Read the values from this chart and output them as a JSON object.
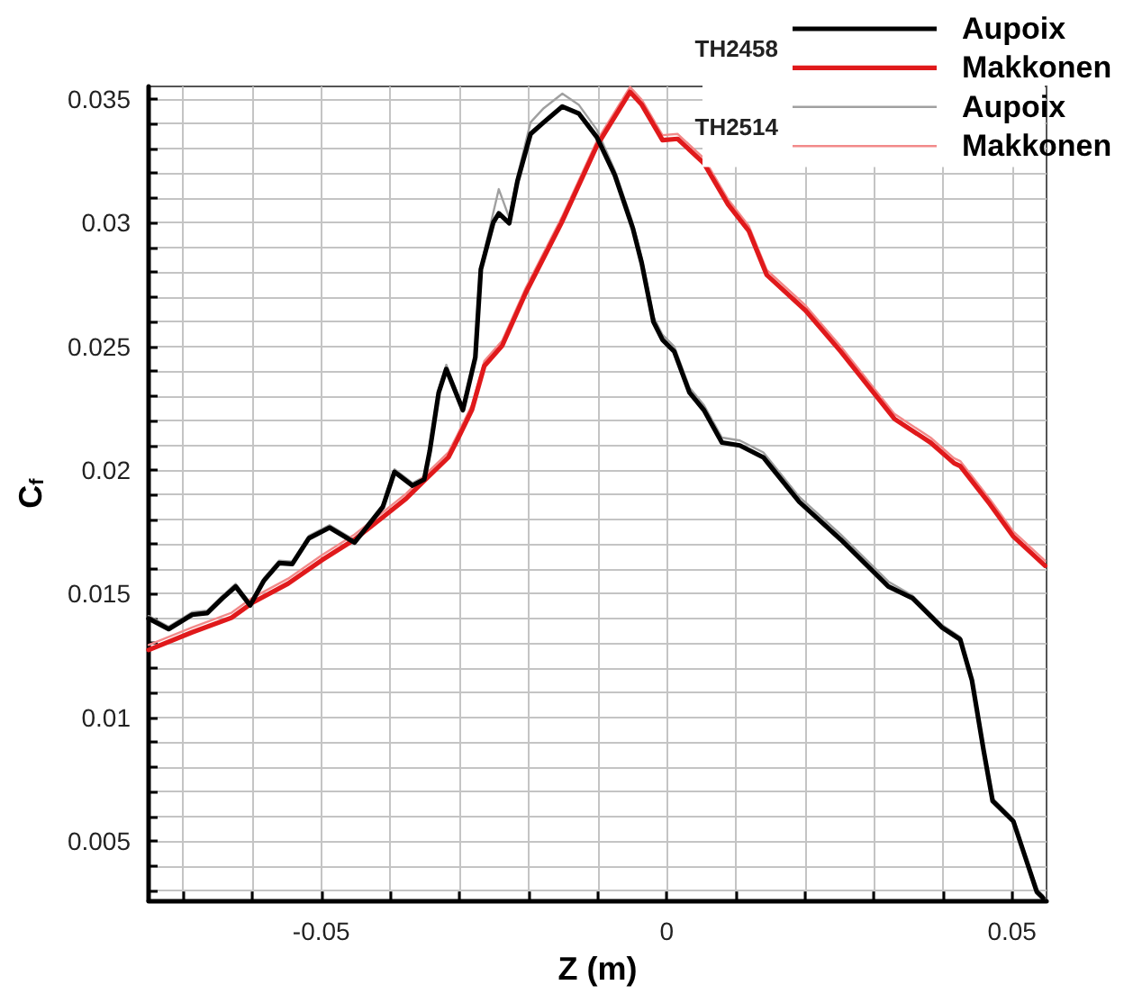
{
  "chart_data": {
    "type": "line",
    "xlabel": "Z (m)",
    "ylabel": "C$_{f}$",
    "xlim": [
      -0.075,
      0.055
    ],
    "ylim": [
      0.0026,
      0.0355
    ],
    "xticks": [
      {
        "value": -0.07,
        "label": null
      },
      {
        "value": -0.06,
        "label": null
      },
      -0.05,
      {
        "value": -0.04,
        "label": null
      },
      {
        "value": -0.03,
        "label": null
      },
      {
        "value": -0.02,
        "label": null
      },
      {
        "value": -0.01,
        "label": null
      },
      0,
      {
        "value": 0.01,
        "label": null
      },
      {
        "value": 0.02,
        "label": null
      },
      {
        "value": 0.03,
        "label": null
      },
      {
        "value": 0.04,
        "label": null
      },
      0.05
    ],
    "yticks": [
      {
        "value": 0.003,
        "label": null
      },
      {
        "value": 0.004,
        "label": null
      },
      0.005,
      {
        "value": 0.006,
        "label": null
      },
      {
        "value": 0.007,
        "label": null
      },
      {
        "value": 0.008,
        "label": null
      },
      {
        "value": 0.009,
        "label": null
      },
      0.01,
      {
        "value": 0.011,
        "label": null
      },
      {
        "value": 0.012,
        "label": null
      },
      {
        "value": 0.013,
        "label": null
      },
      {
        "value": 0.014,
        "label": null
      },
      0.015,
      {
        "value": 0.016,
        "label": null
      },
      {
        "value": 0.017,
        "label": null
      },
      {
        "value": 0.018,
        "label": null
      },
      {
        "value": 0.019,
        "label": null
      },
      0.02,
      {
        "value": 0.021,
        "label": null
      },
      {
        "value": 0.022,
        "label": null
      },
      {
        "value": 0.023,
        "label": null
      },
      {
        "value": 0.024,
        "label": null
      },
      0.025,
      {
        "value": 0.026,
        "label": null
      },
      {
        "value": 0.027,
        "label": null
      },
      {
        "value": 0.028,
        "label": null
      },
      {
        "value": 0.029,
        "label": null
      },
      0.03,
      {
        "value": 0.031,
        "label": null
      },
      {
        "value": 0.032,
        "label": null
      },
      {
        "value": 0.033,
        "label": null
      },
      {
        "value": 0.034,
        "label": null
      },
      0.035
    ],
    "grid": true,
    "legend": "top right",
    "marker": "none",
    "line_style": "solid",
    "annotations": [
      "TH2458",
      "TH2514"
    ],
    "series": [
      {
        "name": "Aupoix",
        "color": "#000000",
        "x": [
          -0.075,
          -0.0721,
          -0.0687,
          -0.0665,
          -0.0643,
          -0.0624,
          -0.0603,
          -0.0583,
          -0.0561,
          -0.0542,
          -0.0518,
          -0.0488,
          -0.0452,
          -0.0428,
          -0.0411,
          -0.0394,
          -0.0368,
          -0.0351,
          -0.0343,
          -0.033,
          -0.0319,
          -0.0295,
          -0.0277,
          -0.0269,
          -0.0251,
          -0.0243,
          -0.0228,
          -0.0216,
          -0.0197,
          -0.0178,
          -0.0151,
          -0.0127,
          -0.0101,
          -0.0075,
          -0.0049,
          -0.0036,
          -0.0019,
          -0.0006,
          0.0011,
          0.0033,
          0.0054,
          0.008,
          0.0106,
          0.014,
          0.0149,
          0.0192,
          0.0252,
          0.0321,
          0.0356,
          0.0399,
          0.0425,
          0.0442,
          0.0459,
          0.0472,
          0.0502,
          0.0519,
          0.0536,
          0.0545
        ],
        "values": [
          0.014,
          0.01357,
          0.01415,
          0.01422,
          0.01482,
          0.01529,
          0.01453,
          0.01553,
          0.01624,
          0.0162,
          0.01724,
          0.01767,
          0.01707,
          0.0179,
          0.0185,
          0.01992,
          0.01937,
          0.01962,
          0.02076,
          0.02313,
          0.02408,
          0.02242,
          0.02455,
          0.02811,
          0.03,
          0.03037,
          0.02997,
          0.03167,
          0.03358,
          0.03405,
          0.03469,
          0.0344,
          0.03345,
          0.03191,
          0.02977,
          0.02835,
          0.02598,
          0.02526,
          0.02479,
          0.02313,
          0.02242,
          0.02111,
          0.02099,
          0.02051,
          0.0202,
          0.01871,
          0.01719,
          0.01529,
          0.01482,
          0.01363,
          0.01315,
          0.0115,
          0.00865,
          0.00662,
          0.0058,
          0.00437,
          0.00295,
          0.0027
        ]
      },
      {
        "name": "Makkonen",
        "color": "#e0191b",
        "x": [
          -0.075,
          -0.0687,
          -0.063,
          -0.06,
          -0.0548,
          -0.0499,
          -0.0452,
          -0.0411,
          -0.0377,
          -0.0351,
          -0.0316,
          -0.0303,
          -0.0282,
          -0.0264,
          -0.0238,
          -0.0204,
          -0.0152,
          -0.0101,
          -0.0053,
          -0.0036,
          -0.0006,
          0.0016,
          0.0054,
          0.0089,
          0.0119,
          0.0145,
          0.0201,
          0.0252,
          0.033,
          0.0382,
          0.0416,
          0.0425,
          0.0468,
          0.0502,
          0.0548
        ],
        "values": [
          0.01273,
          0.01344,
          0.01403,
          0.01463,
          0.01541,
          0.01636,
          0.01719,
          0.01809,
          0.01885,
          0.01957,
          0.02051,
          0.02122,
          0.02242,
          0.0242,
          0.02503,
          0.02716,
          0.03,
          0.0331,
          0.03528,
          0.03476,
          0.03333,
          0.03338,
          0.03239,
          0.03073,
          0.02966,
          0.02788,
          0.02645,
          0.02479,
          0.02206,
          0.02111,
          0.02028,
          0.02016,
          0.01862,
          0.01731,
          0.01613
        ]
      },
      {
        "name": "Aupoix",
        "color": "#a0a0a0",
        "x": [
          -0.075,
          -0.0721,
          -0.0687,
          -0.0665,
          -0.0643,
          -0.0624,
          -0.0603,
          -0.0583,
          -0.0561,
          -0.0542,
          -0.0518,
          -0.0488,
          -0.0452,
          -0.0428,
          -0.0411,
          -0.0394,
          -0.0368,
          -0.0351,
          -0.0343,
          -0.033,
          -0.0319,
          -0.0295,
          -0.0277,
          -0.0269,
          -0.0251,
          -0.0243,
          -0.0228,
          -0.0216,
          -0.0197,
          -0.0178,
          -0.0151,
          -0.0127,
          -0.0101,
          -0.0075,
          -0.0049,
          -0.0036,
          -0.0019,
          -0.0006,
          0.0011,
          0.0033,
          0.0054,
          0.008,
          0.0106,
          0.014,
          0.0149,
          0.0192,
          0.0252,
          0.0321,
          0.0356,
          0.0399,
          0.0425,
          0.0442,
          0.0459,
          0.0472,
          0.0502,
          0.0519,
          0.0536,
          0.0545
        ],
        "values": [
          0.0141,
          0.01367,
          0.01425,
          0.01432,
          0.01492,
          0.0154,
          0.01463,
          0.01563,
          0.01634,
          0.0163,
          0.01734,
          0.01777,
          0.01717,
          0.018,
          0.0186,
          0.02003,
          0.01947,
          0.01972,
          0.02086,
          0.02325,
          0.02425,
          0.02252,
          0.02465,
          0.02821,
          0.0304,
          0.03135,
          0.0302,
          0.03187,
          0.03405,
          0.03462,
          0.03521,
          0.03475,
          0.03375,
          0.0321,
          0.02997,
          0.02855,
          0.02618,
          0.02546,
          0.02499,
          0.02333,
          0.02262,
          0.02131,
          0.02119,
          0.02071,
          0.0204,
          0.01891,
          0.01739,
          0.01549,
          0.01492,
          0.01373,
          0.01325,
          0.0116,
          0.00875,
          0.00672,
          0.0059,
          0.00447,
          0.00305,
          0.0028
        ]
      },
      {
        "name": "Makkonen",
        "color": "#f28a8a",
        "x": [
          -0.075,
          -0.0687,
          -0.063,
          -0.06,
          -0.0548,
          -0.0499,
          -0.0452,
          -0.0411,
          -0.0377,
          -0.0351,
          -0.0316,
          -0.0303,
          -0.0282,
          -0.0264,
          -0.0238,
          -0.0204,
          -0.0152,
          -0.0101,
          -0.0053,
          -0.0036,
          -0.0006,
          0.0016,
          0.0054,
          0.0089,
          0.0119,
          0.0145,
          0.0201,
          0.0252,
          0.033,
          0.0382,
          0.0416,
          0.0425,
          0.0468,
          0.0502,
          0.0548
        ],
        "values": [
          0.01293,
          0.01364,
          0.01423,
          0.01483,
          0.01561,
          0.01656,
          0.01739,
          0.01829,
          0.01905,
          0.01977,
          0.02071,
          0.02142,
          0.02262,
          0.0244,
          0.02523,
          0.02736,
          0.0302,
          0.0333,
          0.03548,
          0.03496,
          0.03353,
          0.03358,
          0.03259,
          0.03093,
          0.02986,
          0.02808,
          0.02665,
          0.02499,
          0.02226,
          0.02131,
          0.02048,
          0.02036,
          0.01882,
          0.01751,
          0.01633
        ]
      }
    ]
  }
}
